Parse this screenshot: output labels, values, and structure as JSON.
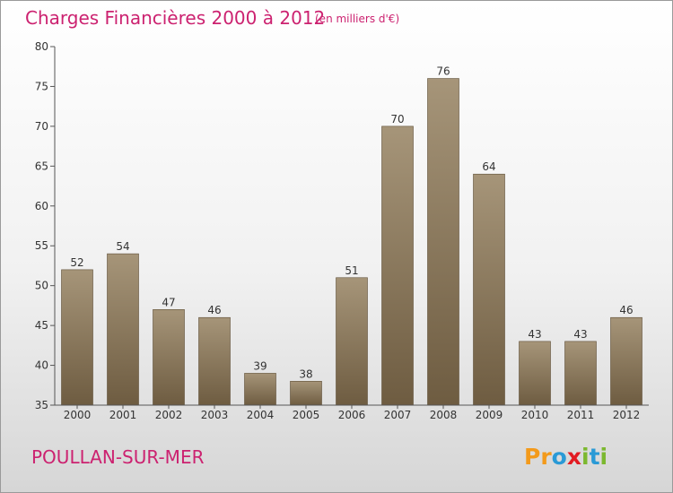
{
  "chart_data": {
    "type": "bar",
    "title": "Charges Financières 2000 à 2012",
    "subtitle": "(en milliers d'€)",
    "xlabel": "",
    "ylabel": "",
    "categories": [
      "2000",
      "2001",
      "2002",
      "2003",
      "2004",
      "2005",
      "2006",
      "2007",
      "2008",
      "2009",
      "2010",
      "2011",
      "2012"
    ],
    "values": [
      52,
      54,
      47,
      46,
      39,
      38,
      51,
      70,
      76,
      64,
      43,
      43,
      46
    ],
    "ylim": [
      35,
      80
    ],
    "yticks": [
      35,
      40,
      45,
      50,
      55,
      60,
      65,
      70,
      75,
      80
    ],
    "grid": false,
    "colors": {
      "bar_top": "#a69579",
      "bar_bottom": "#6e5c41",
      "title": "#cc2270"
    }
  },
  "footer": {
    "commune": "POULLAN-SUR-MER",
    "logo_letters": [
      "P",
      "r",
      "o",
      "x",
      "i",
      "t",
      "i"
    ],
    "logo_colors": [
      "#f39a1b",
      "#f39a1b",
      "#2a9ad6",
      "#e21b22",
      "#7cb82f",
      "#2a9ad6",
      "#7cb82f"
    ]
  }
}
